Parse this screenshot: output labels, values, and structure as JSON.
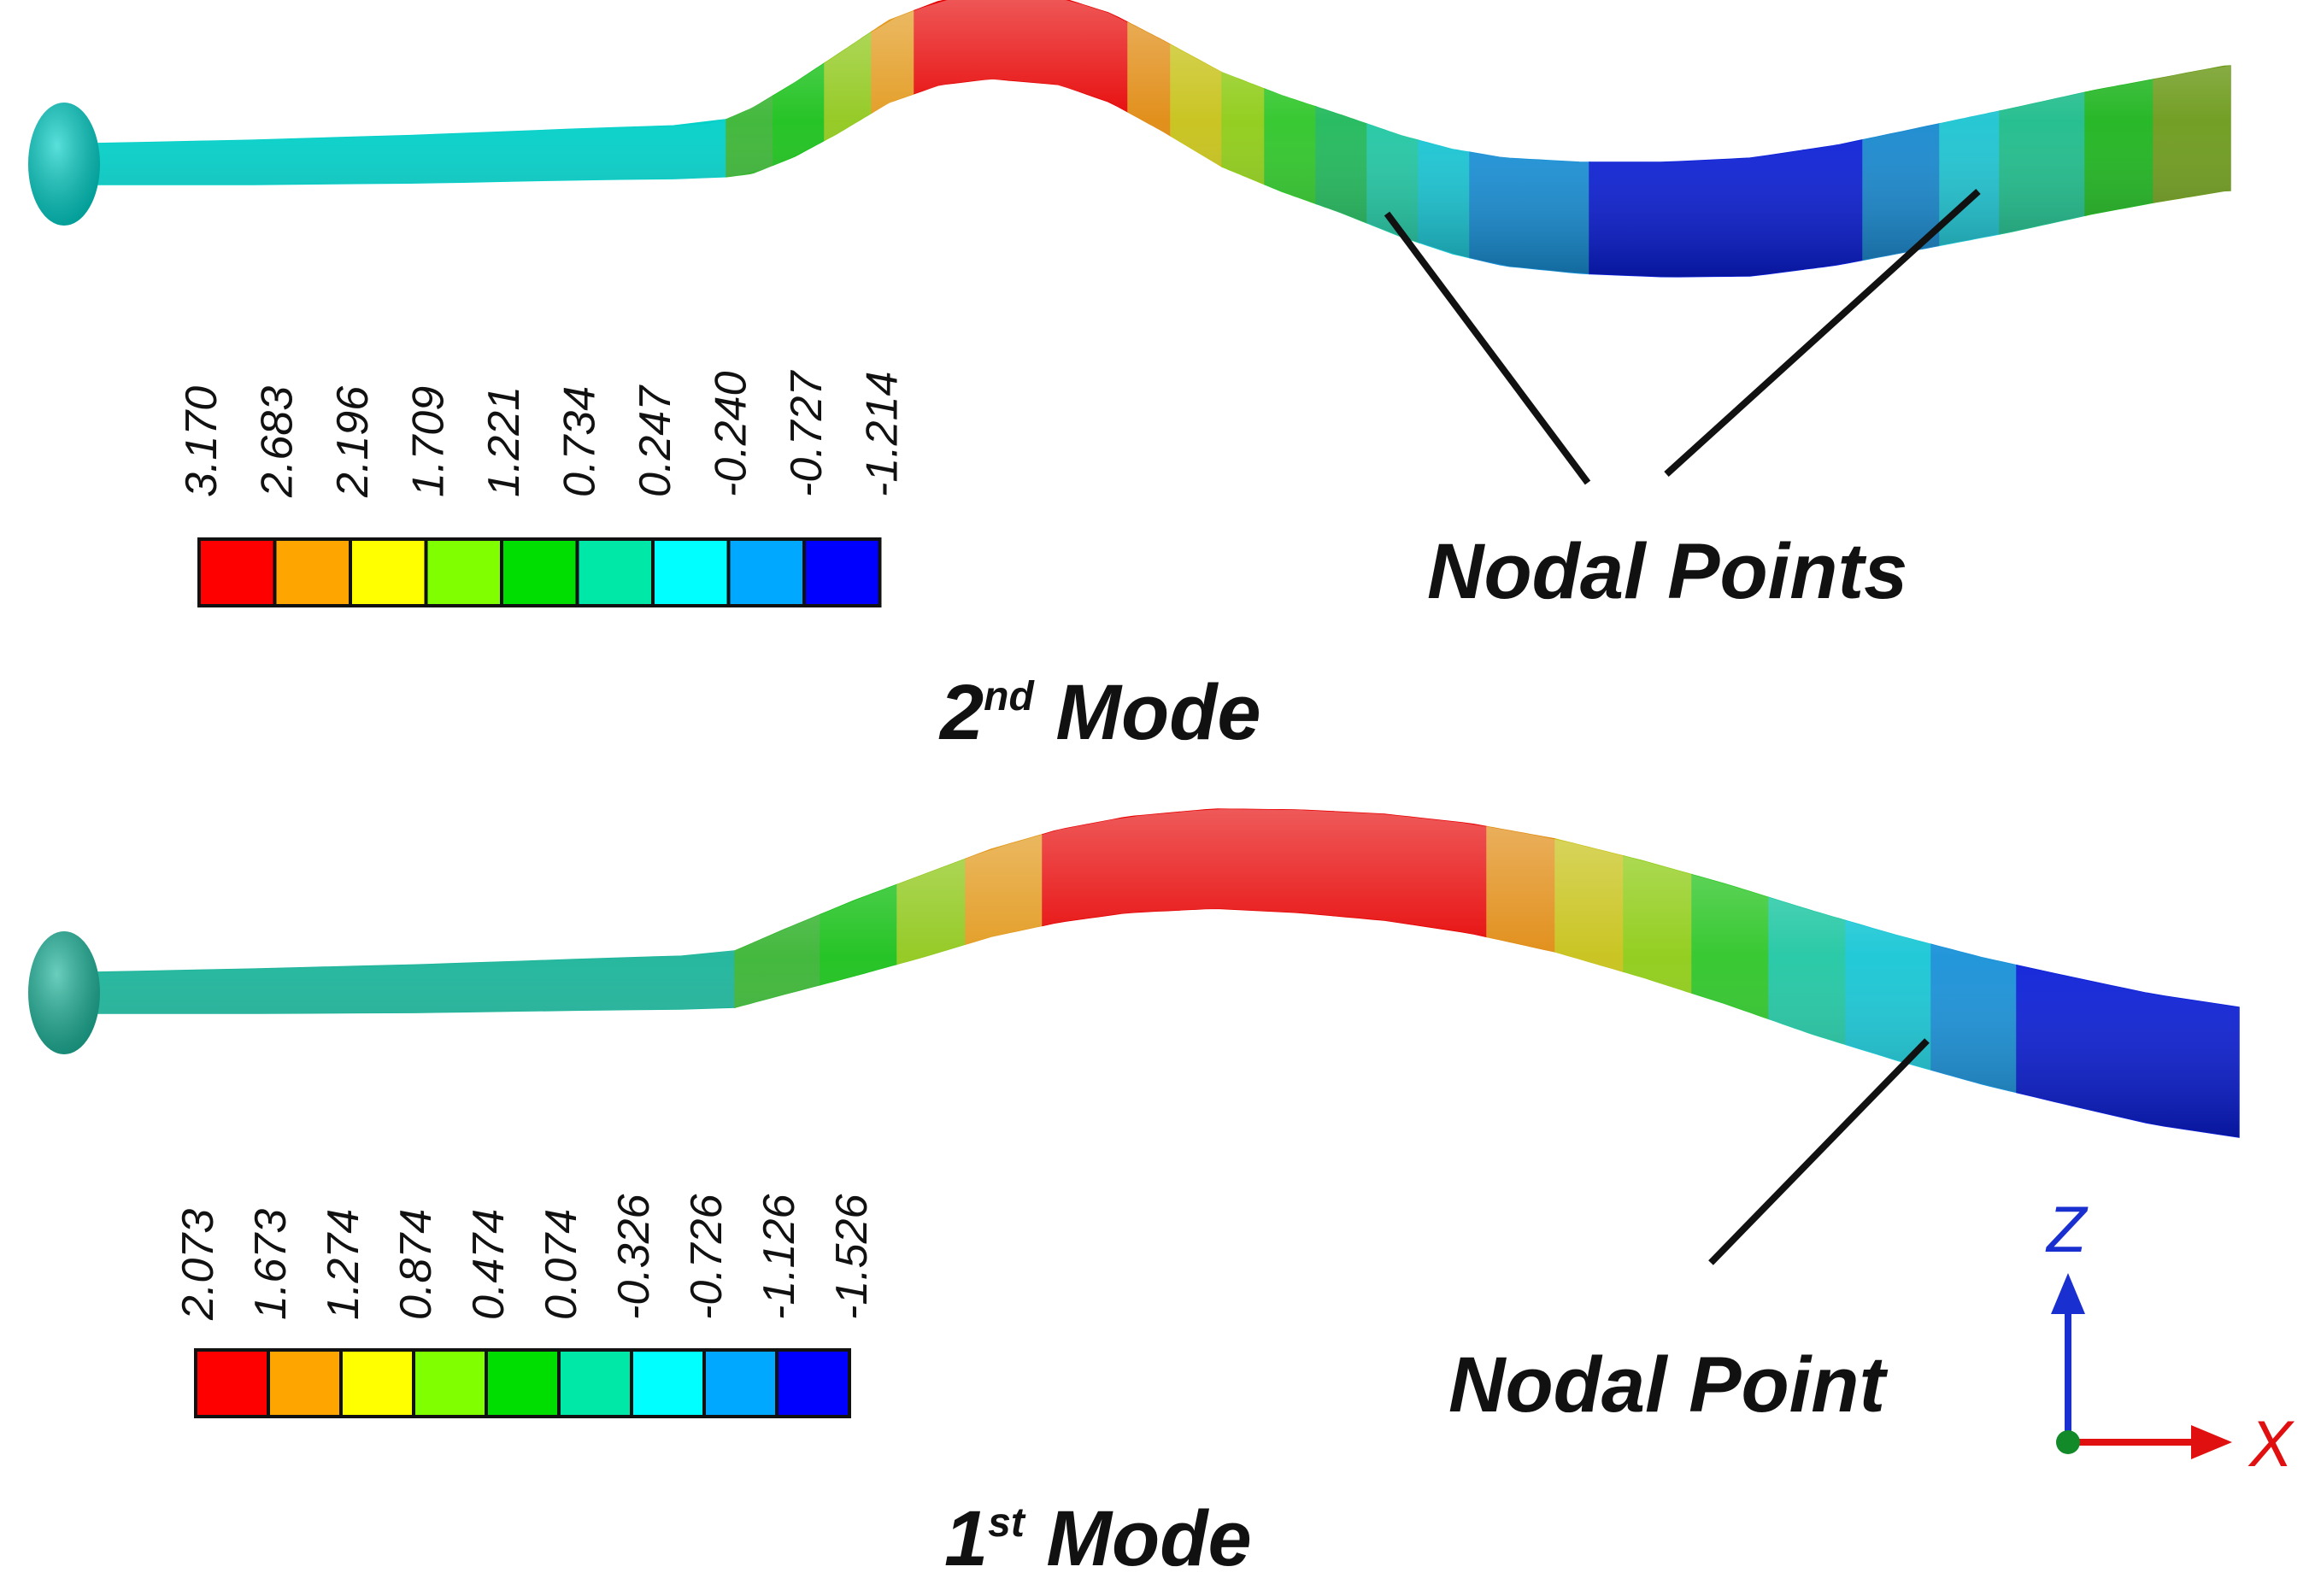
{
  "mode2": {
    "title_main": "2",
    "title_sup": "nd",
    "title_rest": " Mode",
    "nodal_label": "Nodal Points",
    "legend": {
      "ticks": [
        "3.170",
        "2.683",
        "2.196",
        "1.709",
        "1.221",
        "0.734",
        "0.247",
        "-0.240",
        "-0.727",
        "-1.214"
      ],
      "colors": [
        "#ff0000",
        "#ffa500",
        "#ffff00",
        "#80ff00",
        "#00dd00",
        "#00e8a8",
        "#00ffff",
        "#00a8ff",
        "#0000ff"
      ]
    },
    "band_colors": [
      "#00d0c8",
      "#3ab534",
      "#1bc11b",
      "#90c81c",
      "#e2991c",
      "#e60000",
      "#e60000",
      "#e08a10",
      "#c7c218",
      "#8fcc16",
      "#2ec628",
      "#1fb85a",
      "#20c7a3",
      "#17c6d5",
      "#1790d8",
      "#0a1ed8",
      "#0a1ed8",
      "#1688cf",
      "#1cc4d2",
      "#1dbc8a",
      "#1db41d",
      "#6c9a1a"
    ]
  },
  "mode1": {
    "title_main": "1",
    "title_sup": "st",
    "title_rest": " Mode",
    "nodal_label": "Nodal Point",
    "legend": {
      "ticks": [
        "2.073",
        "1.673",
        "1.274",
        "0.874",
        "0.474",
        "0.074",
        "-0.326",
        "-0.726",
        "-1.126",
        "-1.526"
      ],
      "colors": [
        "#ff0000",
        "#ffa500",
        "#ffff00",
        "#80ff00",
        "#00dd00",
        "#00e8a8",
        "#00ffff",
        "#00a8ff",
        "#0000ff"
      ]
    },
    "band_colors": [
      "#1bb49a",
      "#3ab534",
      "#1bc11b",
      "#90c81c",
      "#e2991c",
      "#e60000",
      "#e60000",
      "#e60000",
      "#e08a10",
      "#c7c218",
      "#8fcc16",
      "#2ec628",
      "#20c7a3",
      "#17c6d5",
      "#1790d8",
      "#0a1ed8"
    ]
  },
  "axes": {
    "z_label": "Z",
    "x_label": "X",
    "z_color": "#1a2fd0",
    "x_color": "#e01010",
    "origin_color": "#128a2a"
  }
}
